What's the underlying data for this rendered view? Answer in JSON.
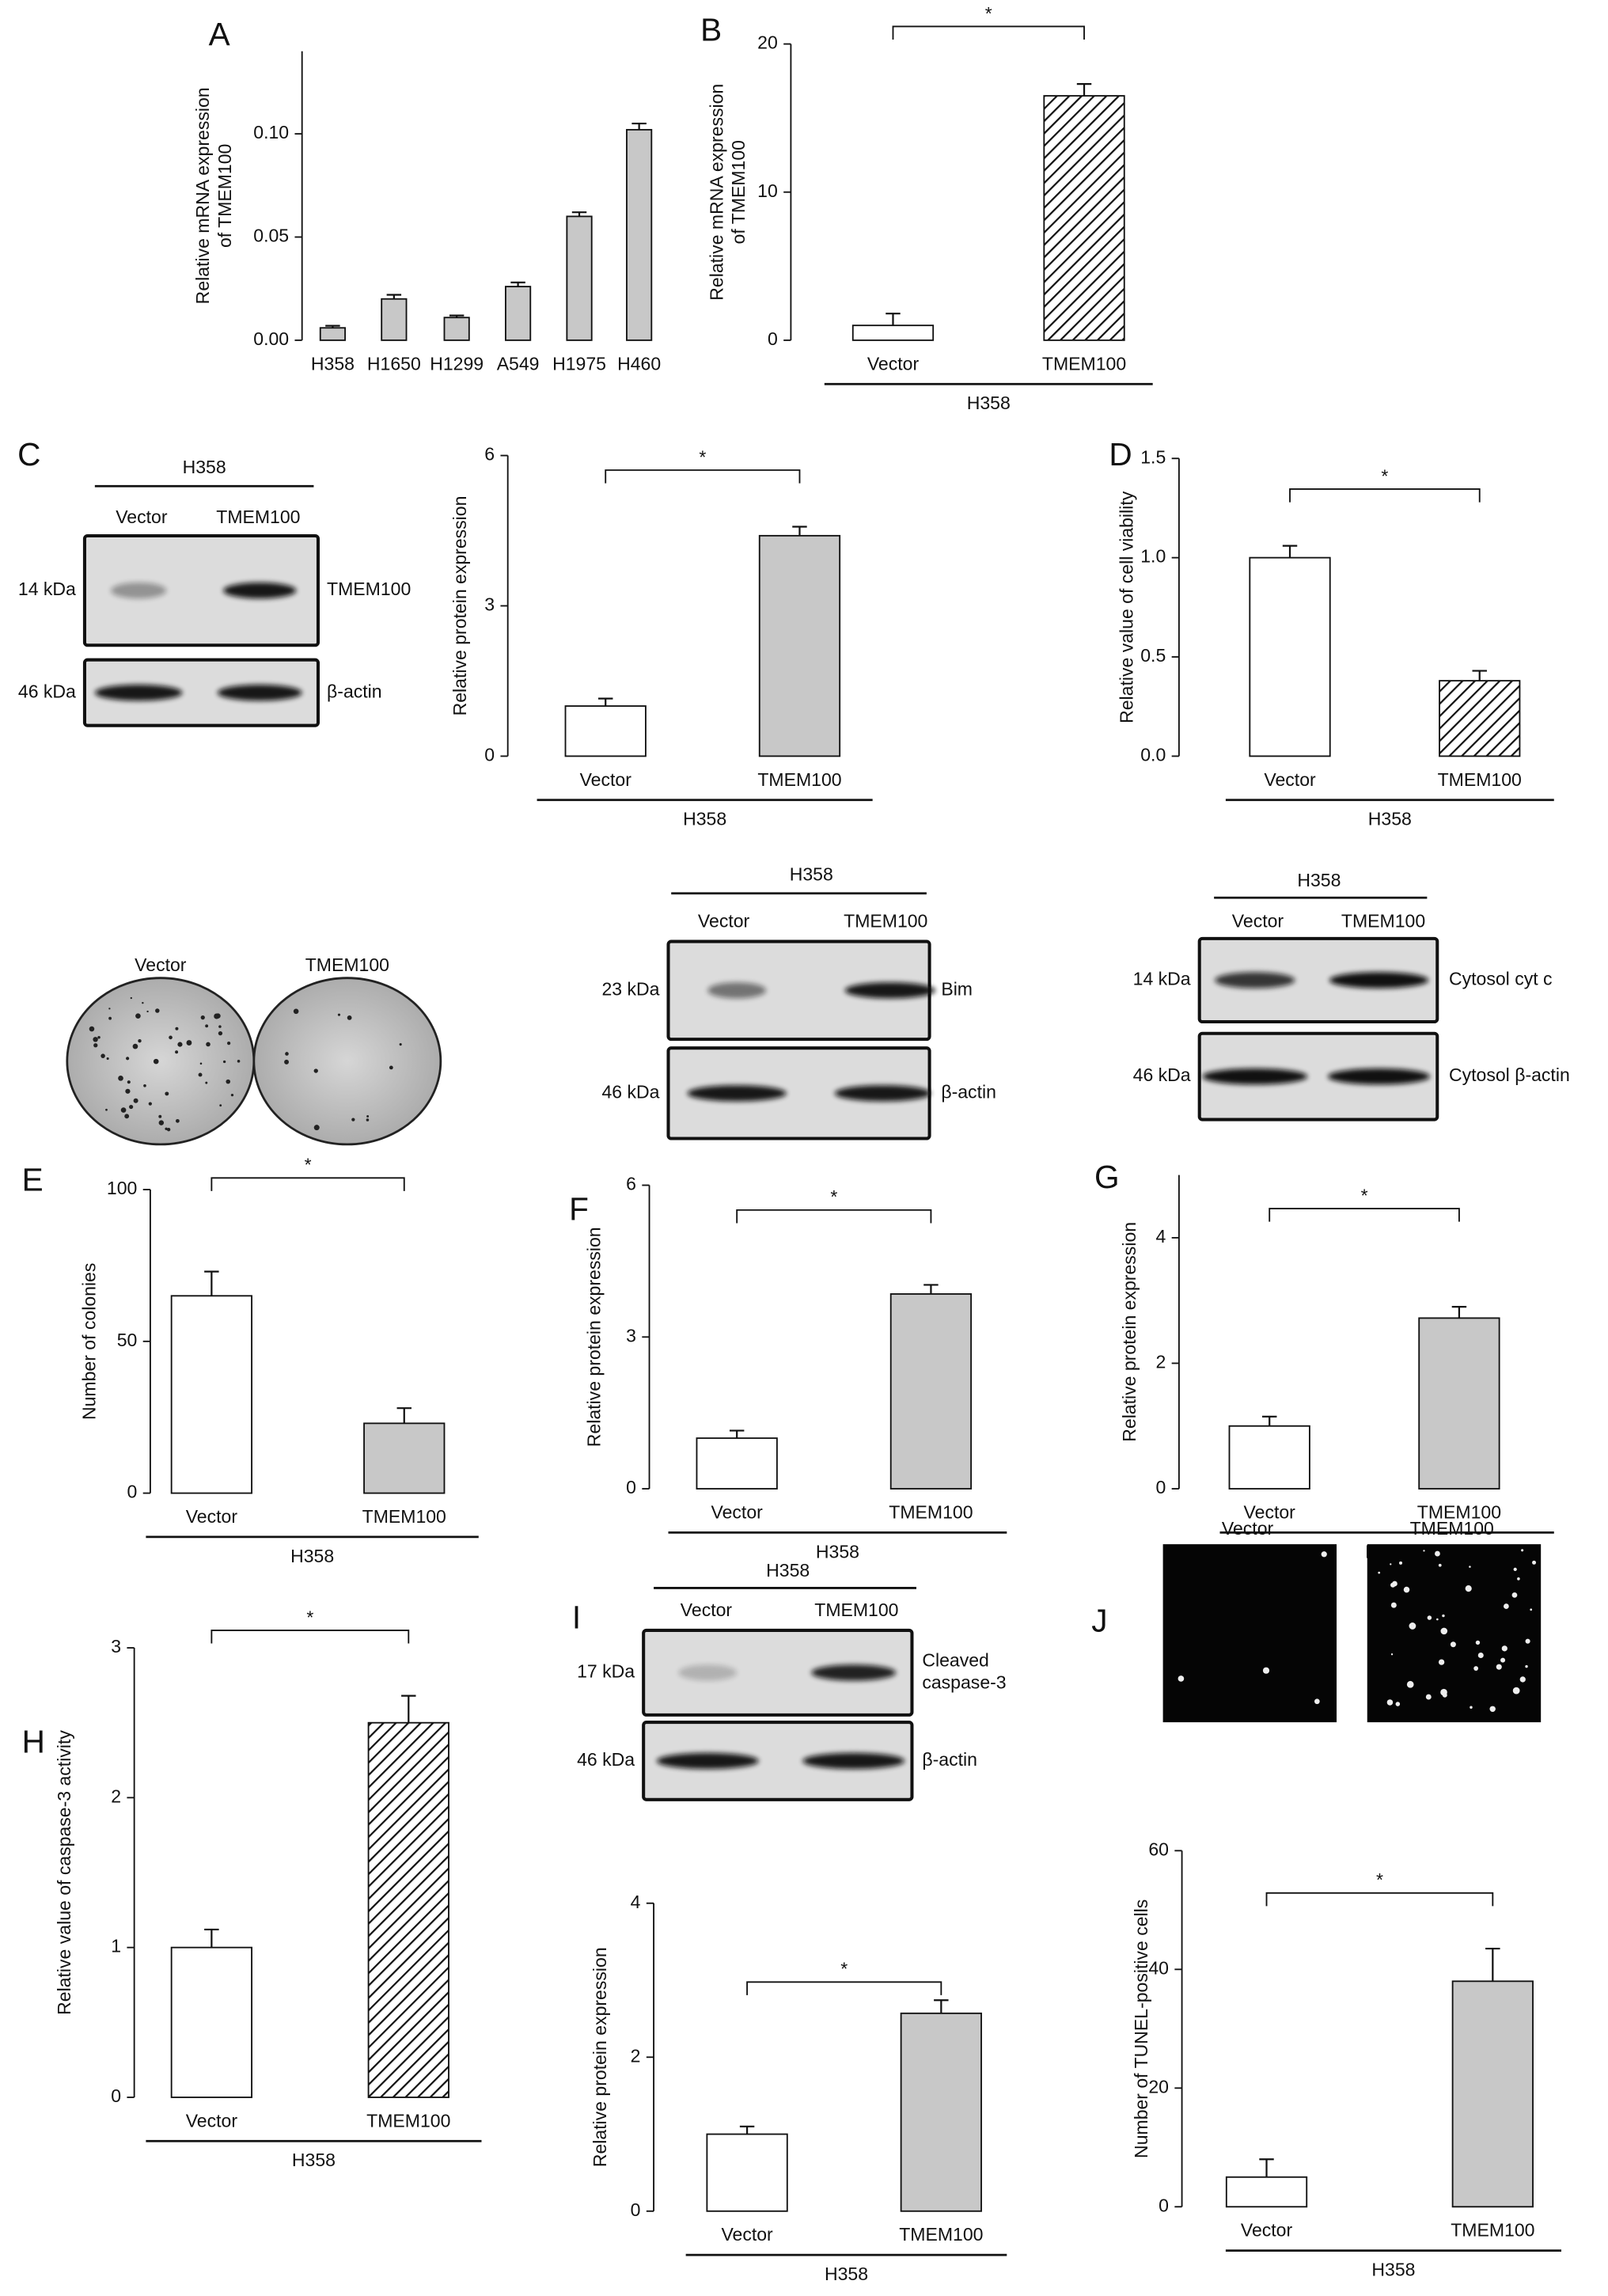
{
  "chart_data": [
    {
      "type": "bar",
      "panel": "A",
      "ylabel": [
        "Relative mRNA expression",
        "of TMEM100"
      ],
      "categories": [
        "H358",
        "H1650",
        "H1299",
        "A549",
        "H1975",
        "H460"
      ],
      "values": [
        0.006,
        0.02,
        0.011,
        0.026,
        0.06,
        0.102
      ],
      "errors": [
        0.001,
        0.002,
        0.001,
        0.002,
        0.002,
        0.003
      ],
      "fills": [
        "#c8c8c8",
        "#c8c8c8",
        "#c8c8c8",
        "#c8c8c8",
        "#c8c8c8",
        "#c8c8c8"
      ],
      "ylim": [
        0,
        0.14
      ],
      "yticks": [
        {
          "value": 0,
          "label": "0.00"
        },
        {
          "value": 0.05,
          "label": "0.05"
        },
        {
          "value": 0.1,
          "label": "0.10"
        }
      ]
    },
    {
      "type": "bar",
      "panel": "B",
      "ylabel": [
        "Relative mRNA expression",
        "of TMEM100"
      ],
      "categories": [
        "Vector",
        "TMEM100"
      ],
      "values": [
        1.0,
        16.5
      ],
      "errors": [
        0.8,
        0.8
      ],
      "fills": [
        "#ffffff",
        "hatched"
      ],
      "ylim": [
        0,
        20
      ],
      "yticks": [
        0,
        10,
        20
      ],
      "significance": "*",
      "group_label": "H358"
    },
    {
      "type": "bar",
      "panel": "C",
      "ylabel": "Relative protein expression",
      "categories": [
        "Vector",
        "TMEM100"
      ],
      "values": [
        1.0,
        4.4
      ],
      "errors": [
        0.15,
        0.18
      ],
      "fills": [
        "#ffffff",
        "#c8c8c8"
      ],
      "ylim": [
        0,
        6
      ],
      "yticks": [
        0,
        3,
        6
      ],
      "significance": "*",
      "group_label": "H358"
    },
    {
      "type": "bar",
      "panel": "D",
      "ylabel": "Relative value of cell viability",
      "categories": [
        "Vector",
        "TMEM100"
      ],
      "values": [
        1.0,
        0.38
      ],
      "errors": [
        0.06,
        0.05
      ],
      "fills": [
        "#ffffff",
        "hatched"
      ],
      "ylim": [
        0,
        1.5
      ],
      "yticks": [
        {
          "value": 0,
          "label": "0.0"
        },
        {
          "value": 0.5,
          "label": "0.5"
        },
        {
          "value": 1,
          "label": "1.0"
        },
        {
          "value": 1.5,
          "label": "1.5"
        }
      ],
      "significance": "*",
      "group_label": "H358"
    },
    {
      "type": "bar",
      "panel": "E",
      "ylabel": "Number of colonies",
      "categories": [
        "Vector",
        "TMEM100"
      ],
      "values": [
        65,
        23
      ],
      "errors": [
        8,
        5
      ],
      "fills": [
        "#ffffff",
        "#c8c8c8"
      ],
      "ylim": [
        0,
        100
      ],
      "yticks": [
        0,
        50,
        100
      ],
      "significance": "*",
      "group_label": "H358"
    },
    {
      "type": "bar",
      "panel": "F",
      "ylabel": "Relative protein expression",
      "categories": [
        "Vector",
        "TMEM100"
      ],
      "values": [
        1.0,
        3.85
      ],
      "errors": [
        0.15,
        0.18
      ],
      "fills": [
        "#ffffff",
        "#c8c8c8"
      ],
      "ylim": [
        0,
        6
      ],
      "yticks": [
        0,
        3,
        6
      ],
      "significance": "*",
      "group_label": "H358"
    },
    {
      "type": "bar",
      "panel": "G",
      "ylabel": "Relative protein expression",
      "categories": [
        "Vector",
        "TMEM100"
      ],
      "values": [
        1.0,
        2.72
      ],
      "errors": [
        0.15,
        0.18
      ],
      "fills": [
        "#ffffff",
        "#c8c8c8"
      ],
      "ylim": [
        0,
        5
      ],
      "yticks": [
        0,
        2,
        4
      ],
      "significance": "*",
      "group_label": "H358"
    },
    {
      "type": "bar",
      "panel": "H",
      "ylabel": "Relative value of caspase-3 activity",
      "categories": [
        "Vector",
        "TMEM100"
      ],
      "values": [
        1.0,
        2.5
      ],
      "errors": [
        0.12,
        0.18
      ],
      "fills": [
        "#ffffff",
        "hatched"
      ],
      "ylim": [
        0,
        3
      ],
      "yticks": [
        0,
        1,
        2,
        3
      ],
      "significance": "*",
      "group_label": "H358"
    },
    {
      "type": "bar",
      "panel": "I",
      "ylabel": "Relative protein expression",
      "categories": [
        "Vector",
        "TMEM100"
      ],
      "values": [
        1.0,
        2.57
      ],
      "errors": [
        0.1,
        0.17
      ],
      "fills": [
        "#ffffff",
        "#c8c8c8"
      ],
      "ylim": [
        0,
        4
      ],
      "yticks": [
        0,
        2,
        4
      ],
      "significance": "*",
      "group_label": "H358"
    },
    {
      "type": "bar",
      "panel": "J",
      "ylabel": "Number of TUNEL-positive cells",
      "categories": [
        "Vector",
        "TMEM100"
      ],
      "values": [
        5,
        38
      ],
      "errors": [
        3,
        5.5
      ],
      "fills": [
        "#ffffff",
        "#c8c8c8"
      ],
      "ylim": [
        0,
        60
      ],
      "yticks": [
        0,
        20,
        40,
        60
      ],
      "significance": "*",
      "group_label": "H358"
    }
  ],
  "blots": [
    {
      "header": "H358",
      "lanes": [
        "Vector",
        "TMEM100"
      ],
      "rows": [
        {
          "kda": "14 kDa",
          "protein": [
            "TMEM100"
          ]
        },
        {
          "kda": "46 kDa",
          "protein": [
            "β-actin"
          ]
        }
      ]
    },
    {
      "header": "H358",
      "lanes": [
        "Vector",
        "TMEM100"
      ],
      "rows": [
        {
          "kda": "23 kDa",
          "protein": [
            "Bim"
          ]
        },
        {
          "kda": "46 kDa",
          "protein": [
            "β-actin"
          ]
        }
      ]
    },
    {
      "header": "H358",
      "lanes": [
        "Vector",
        "TMEM100"
      ],
      "rows": [
        {
          "kda": "14 kDa",
          "protein": [
            "Cytosol cyt c"
          ]
        },
        {
          "kda": "46 kDa",
          "protein": [
            "Cytosol β-actin"
          ]
        }
      ]
    },
    {
      "header": "H358",
      "lanes": [
        "Vector",
        "TMEM100"
      ],
      "rows": [
        {
          "kda": "17 kDa",
          "protein": [
            "Cleaved",
            "caspase-3"
          ]
        },
        {
          "kda": "46 kDa",
          "protein": [
            "β-actin"
          ]
        }
      ]
    }
  ],
  "colony_plates": {
    "labels": [
      "Vector",
      "TMEM100"
    ]
  },
  "tunel_images": {
    "labels": [
      "Vector",
      "TMEM100"
    ]
  }
}
